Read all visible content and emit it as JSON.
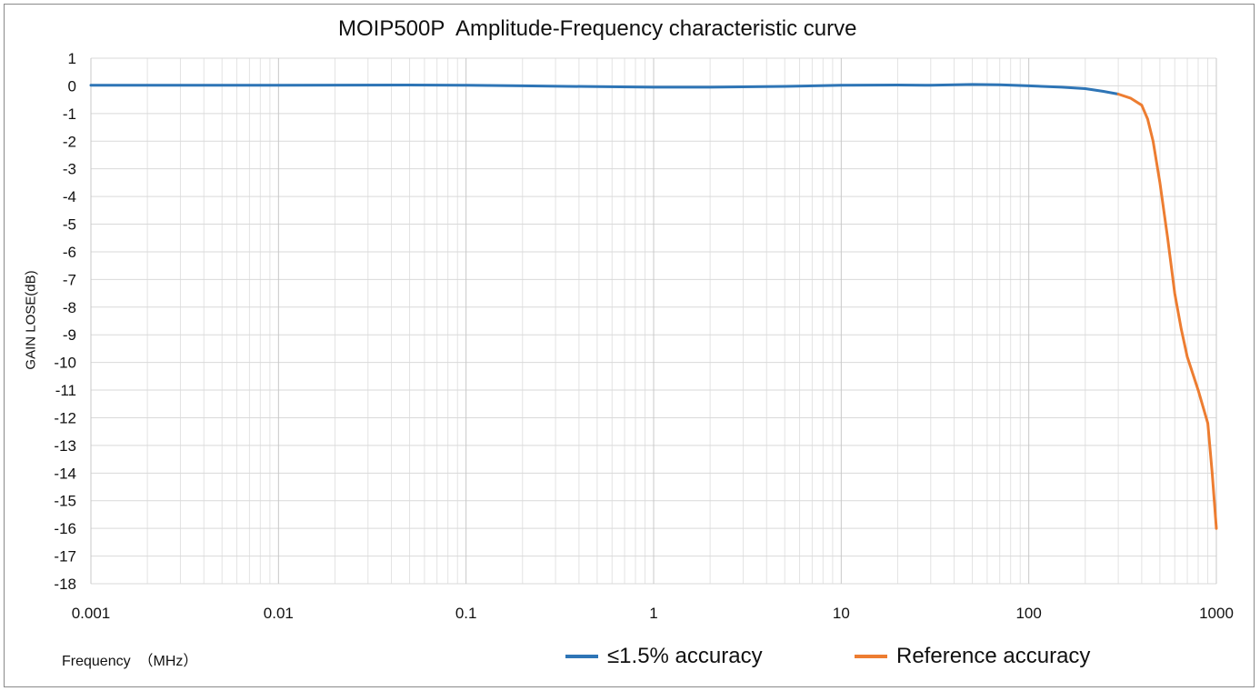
{
  "chart_data": {
    "type": "line",
    "title": "MOIP500P  Amplitude-Frequency characteristic curve",
    "xlabel": "Frequency  （MHz）",
    "ylabel": "GAIN LOSE(dB)",
    "x_scale": "log",
    "xlim": [
      0.001,
      1000
    ],
    "ylim": [
      -18,
      1
    ],
    "x_ticks": [
      "0.001",
      "0.01",
      "0.1",
      "1",
      "10",
      "100",
      "1000"
    ],
    "y_ticks": [
      "1",
      "0",
      "-1",
      "-2",
      "-3",
      "-4",
      "-5",
      "-6",
      "-7",
      "-8",
      "-9",
      "-10",
      "-11",
      "-12",
      "-13",
      "-14",
      "-15",
      "-16",
      "-17",
      "-18"
    ],
    "grid": true,
    "legend_position": "bottom",
    "series": [
      {
        "name": "≤1.5% accuracy",
        "color": "#2e75b6",
        "x": [
          0.001,
          0.01,
          0.05,
          0.1,
          0.2,
          0.5,
          1,
          2,
          5,
          10,
          20,
          30,
          50,
          70,
          100,
          150,
          200,
          250,
          300
        ],
        "y": [
          0.02,
          0.02,
          0.03,
          0.02,
          0.0,
          -0.03,
          -0.05,
          -0.05,
          -0.02,
          0.02,
          0.03,
          0.02,
          0.05,
          0.04,
          0.0,
          -0.05,
          -0.1,
          -0.2,
          -0.3
        ]
      },
      {
        "name": "Reference accuracy",
        "color": "#ed7d31",
        "x": [
          300,
          350,
          400,
          430,
          460,
          500,
          550,
          600,
          650,
          700,
          800,
          900,
          950,
          1000
        ],
        "y": [
          -0.3,
          -0.45,
          -0.7,
          -1.2,
          -2.0,
          -3.5,
          -5.5,
          -7.5,
          -8.8,
          -9.8,
          -11.0,
          -12.2,
          -14.0,
          -16.0
        ]
      }
    ]
  }
}
